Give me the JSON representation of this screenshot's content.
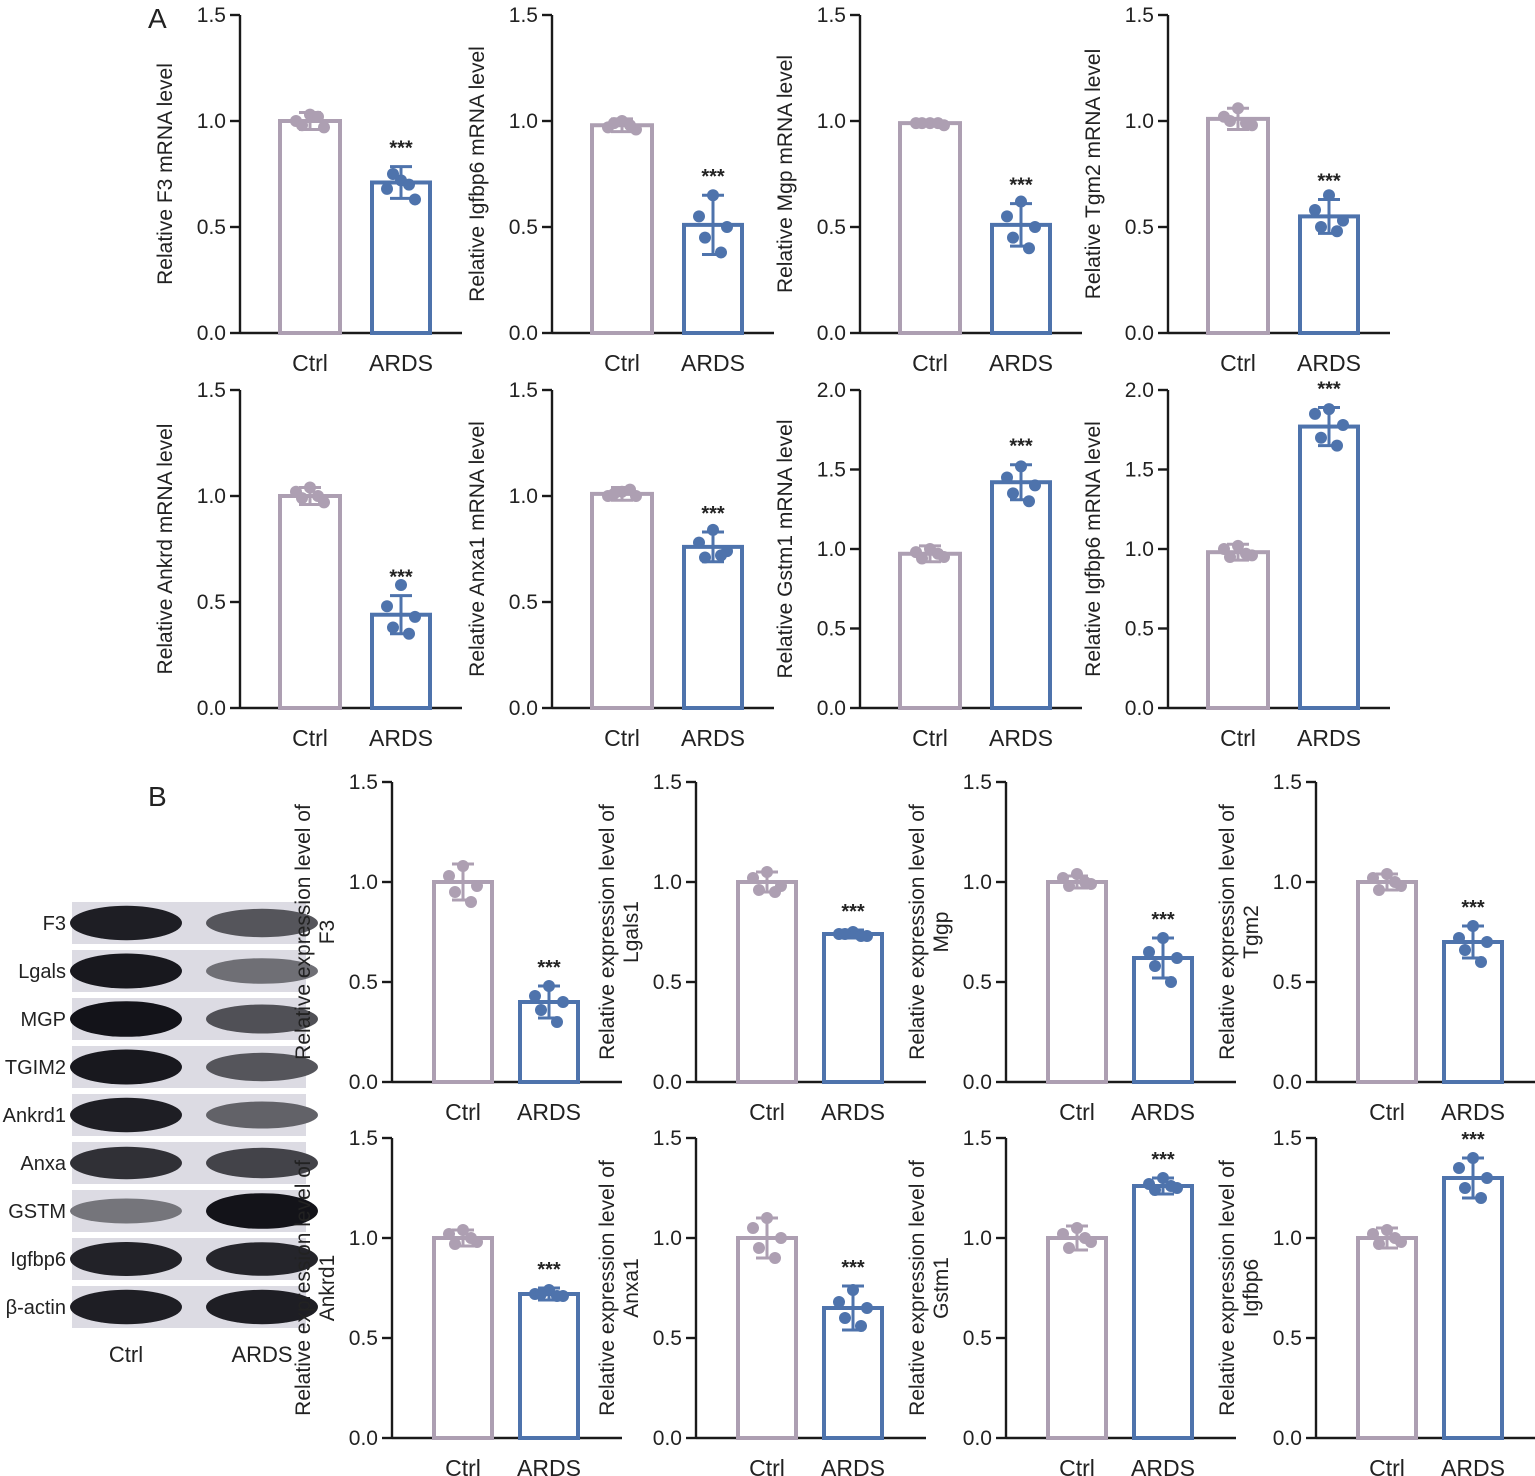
{
  "panel_labels": {
    "a": "A",
    "b": "B"
  },
  "colors": {
    "ctrl": "#ad9fb2",
    "ards": "#4e73ac",
    "axis": "#1a1a1a",
    "text": "#222222"
  },
  "significance": "***",
  "blot": {
    "rows": [
      "F3",
      "Lgals",
      "MGP",
      "TGIM2",
      "Ankrd1",
      "Anxa",
      "GSTM",
      "Igfbp6",
      "β-actin"
    ],
    "columns": [
      "Ctrl",
      "ARDS"
    ],
    "intensity": [
      [
        0.92,
        0.62
      ],
      [
        0.95,
        0.48
      ],
      [
        0.98,
        0.65
      ],
      [
        0.95,
        0.62
      ],
      [
        0.92,
        0.55
      ],
      [
        0.82,
        0.72
      ],
      [
        0.45,
        0.98
      ],
      [
        0.9,
        0.88
      ],
      [
        0.92,
        0.92
      ]
    ]
  },
  "chart_data": [
    {
      "type": "bar",
      "categories": [
        "Ctrl",
        "ARDS"
      ],
      "ylabel": "Relative F3 mRNA level",
      "ylim": [
        0,
        1.5
      ],
      "yticks": [
        "0.0",
        "0.5",
        "1.0",
        "1.5"
      ],
      "means": [
        1.0,
        0.71
      ],
      "sd": [
        0.04,
        0.075
      ],
      "points": [
        [
          1.03,
          1.0,
          0.97,
          0.98,
          1.02
        ],
        [
          0.72,
          0.68,
          0.63,
          0.75,
          0.7
        ]
      ],
      "annotation": "***"
    },
    {
      "type": "bar",
      "categories": [
        "Ctrl",
        "ARDS"
      ],
      "ylabel": "Relative Igfbp6 mRNA level",
      "ylim": [
        0,
        1.5
      ],
      "yticks": [
        "0.0",
        "0.5",
        "1.0",
        "1.5"
      ],
      "means": [
        0.98,
        0.51
      ],
      "sd": [
        0.03,
        0.14
      ],
      "points": [
        [
          1.0,
          0.97,
          0.96,
          0.99,
          0.98
        ],
        [
          0.65,
          0.55,
          0.5,
          0.45,
          0.38
        ]
      ],
      "annotation": "***"
    },
    {
      "type": "bar",
      "categories": [
        "Ctrl",
        "ARDS"
      ],
      "ylabel": "Relative Mgp mRNA level",
      "ylim": [
        0,
        1.5
      ],
      "yticks": [
        "0.0",
        "0.5",
        "1.0",
        "1.5"
      ],
      "means": [
        0.99,
        0.51
      ],
      "sd": [
        0.01,
        0.1
      ],
      "points": [
        [
          0.99,
          0.99,
          0.98,
          0.99,
          0.99
        ],
        [
          0.62,
          0.55,
          0.5,
          0.45,
          0.4
        ]
      ],
      "annotation": "***"
    },
    {
      "type": "bar",
      "categories": [
        "Ctrl",
        "ARDS"
      ],
      "ylabel": "Relative Tgm2 mRNA level",
      "ylim": [
        0,
        1.5
      ],
      "yticks": [
        "0.0",
        "0.5",
        "1.0",
        "1.5"
      ],
      "means": [
        1.01,
        0.55
      ],
      "sd": [
        0.05,
        0.08
      ],
      "points": [
        [
          1.06,
          1.02,
          0.98,
          1.0,
          0.99
        ],
        [
          0.65,
          0.58,
          0.53,
          0.5,
          0.48
        ]
      ],
      "annotation": "***"
    },
    {
      "type": "bar",
      "categories": [
        "Ctrl",
        "ARDS"
      ],
      "ylabel": "Relative Ankrd mRNA level",
      "ylim": [
        0,
        1.5
      ],
      "yticks": [
        "0.0",
        "0.5",
        "1.0",
        "1.5"
      ],
      "means": [
        1.0,
        0.44
      ],
      "sd": [
        0.04,
        0.09
      ],
      "points": [
        [
          1.04,
          1.02,
          0.97,
          0.99,
          1.0
        ],
        [
          0.58,
          0.48,
          0.43,
          0.38,
          0.35
        ]
      ],
      "annotation": "***"
    },
    {
      "type": "bar",
      "categories": [
        "Ctrl",
        "ARDS"
      ],
      "ylabel": "Relative Anxa1 mRNA level",
      "ylim": [
        0,
        1.5
      ],
      "yticks": [
        "0.0",
        "0.5",
        "1.0",
        "1.5"
      ],
      "means": [
        1.01,
        0.76
      ],
      "sd": [
        0.03,
        0.07
      ],
      "points": [
        [
          1.02,
          1.0,
          1.0,
          1.01,
          1.03
        ],
        [
          0.84,
          0.78,
          0.74,
          0.71,
          0.72
        ]
      ],
      "annotation": "***"
    },
    {
      "type": "bar",
      "categories": [
        "Ctrl",
        "ARDS"
      ],
      "ylabel": "Relative Gstm1 mRNA level",
      "ylim": [
        0,
        2.0
      ],
      "yticks": [
        "0.0",
        "0.5",
        "1.0",
        "1.5",
        "2.0"
      ],
      "means": [
        0.97,
        1.42
      ],
      "sd": [
        0.05,
        0.11
      ],
      "points": [
        [
          1.0,
          0.98,
          0.95,
          0.94,
          0.97
        ],
        [
          1.52,
          1.45,
          1.4,
          1.35,
          1.3
        ]
      ],
      "annotation": "***"
    },
    {
      "type": "bar",
      "categories": [
        "Ctrl",
        "ARDS"
      ],
      "ylabel": "Relative Igfbp6 mRNA level",
      "ylim": [
        0,
        2.0
      ],
      "yticks": [
        "0.0",
        "0.5",
        "1.0",
        "1.5",
        "2.0"
      ],
      "means": [
        0.98,
        1.77
      ],
      "sd": [
        0.05,
        0.12
      ],
      "points": [
        [
          1.02,
          1.0,
          0.96,
          0.95,
          0.97
        ],
        [
          1.88,
          1.85,
          1.78,
          1.7,
          1.65
        ]
      ],
      "annotation": "***"
    },
    {
      "type": "bar",
      "categories": [
        "Ctrl",
        "ARDS"
      ],
      "ylabel": [
        "Relative expression level of",
        "F3"
      ],
      "ylim": [
        0,
        1.5
      ],
      "yticks": [
        "0.0",
        "0.5",
        "1.0",
        "1.5"
      ],
      "means": [
        1.0,
        0.4
      ],
      "sd": [
        0.09,
        0.08
      ],
      "points": [
        [
          1.08,
          1.03,
          0.98,
          0.95,
          0.9
        ],
        [
          0.48,
          0.43,
          0.4,
          0.36,
          0.3
        ]
      ],
      "annotation": "***"
    },
    {
      "type": "bar",
      "categories": [
        "Ctrl",
        "ARDS"
      ],
      "ylabel": [
        "Relative expression level of",
        "Lgals1"
      ],
      "ylim": [
        0,
        1.5
      ],
      "yticks": [
        "0.0",
        "0.5",
        "1.0",
        "1.5"
      ],
      "means": [
        1.0,
        0.74
      ],
      "sd": [
        0.05,
        0.02
      ],
      "points": [
        [
          1.05,
          1.02,
          0.98,
          0.96,
          0.95
        ],
        [
          0.75,
          0.74,
          0.73,
          0.74,
          0.73
        ]
      ],
      "annotation": "***"
    },
    {
      "type": "bar",
      "categories": [
        "Ctrl",
        "ARDS"
      ],
      "ylabel": [
        "Relative expression level of",
        "Mgp"
      ],
      "ylim": [
        0,
        1.5
      ],
      "yticks": [
        "0.0",
        "0.5",
        "1.0",
        "1.5"
      ],
      "means": [
        1.0,
        0.62
      ],
      "sd": [
        0.03,
        0.1
      ],
      "points": [
        [
          1.04,
          1.02,
          0.99,
          0.98,
          1.0
        ],
        [
          0.72,
          0.65,
          0.62,
          0.58,
          0.5
        ]
      ],
      "annotation": "***"
    },
    {
      "type": "bar",
      "categories": [
        "Ctrl",
        "ARDS"
      ],
      "ylabel": [
        "Relative expression level of",
        "Tgm2"
      ],
      "ylim": [
        0,
        1.5
      ],
      "yticks": [
        "0.0",
        "0.5",
        "1.0",
        "1.5"
      ],
      "means": [
        1.0,
        0.7
      ],
      "sd": [
        0.04,
        0.08
      ],
      "points": [
        [
          1.04,
          1.02,
          0.98,
          0.96,
          1.0
        ],
        [
          0.78,
          0.72,
          0.7,
          0.66,
          0.6
        ]
      ],
      "annotation": "***"
    },
    {
      "type": "bar",
      "categories": [
        "Ctrl",
        "ARDS"
      ],
      "ylabel": [
        "Relative expression level of",
        "Ankrd1"
      ],
      "ylim": [
        0,
        1.5
      ],
      "yticks": [
        "0.0",
        "0.5",
        "1.0",
        "1.5"
      ],
      "means": [
        1.0,
        0.72
      ],
      "sd": [
        0.04,
        0.03
      ],
      "points": [
        [
          1.04,
          1.02,
          0.98,
          0.97,
          1.0
        ],
        [
          0.74,
          0.72,
          0.71,
          0.72,
          0.71
        ]
      ],
      "annotation": "***"
    },
    {
      "type": "bar",
      "categories": [
        "Ctrl",
        "ARDS"
      ],
      "ylabel": [
        "Relative expression level of",
        "Anxa1"
      ],
      "ylim": [
        0,
        1.5
      ],
      "yticks": [
        "0.0",
        "0.5",
        "1.0",
        "1.5"
      ],
      "means": [
        1.0,
        0.65
      ],
      "sd": [
        0.1,
        0.11
      ],
      "points": [
        [
          1.1,
          1.05,
          1.0,
          0.95,
          0.9
        ],
        [
          0.74,
          0.68,
          0.65,
          0.6,
          0.56
        ]
      ],
      "annotation": "***"
    },
    {
      "type": "bar",
      "categories": [
        "Ctrl",
        "ARDS"
      ],
      "ylabel": [
        "Relative expression level of",
        "Gstm1"
      ],
      "ylim": [
        0,
        1.5
      ],
      "yticks": [
        "0.0",
        "0.5",
        "1.0",
        "1.5"
      ],
      "means": [
        1.0,
        1.26
      ],
      "sd": [
        0.06,
        0.04
      ],
      "points": [
        [
          1.05,
          1.02,
          0.98,
          0.95,
          1.0
        ],
        [
          1.3,
          1.27,
          1.25,
          1.24,
          1.26
        ]
      ],
      "annotation": "***"
    },
    {
      "type": "bar",
      "categories": [
        "Ctrl",
        "ARDS"
      ],
      "ylabel": [
        "Relative expression level of",
        "Igfbp6"
      ],
      "ylim": [
        0,
        1.5
      ],
      "yticks": [
        "0.0",
        "0.5",
        "1.0",
        "1.5"
      ],
      "means": [
        1.0,
        1.3
      ],
      "sd": [
        0.05,
        0.1
      ],
      "points": [
        [
          1.04,
          1.02,
          0.98,
          0.97,
          1.0
        ],
        [
          1.4,
          1.35,
          1.3,
          1.25,
          1.2
        ]
      ],
      "annotation": "***"
    }
  ]
}
